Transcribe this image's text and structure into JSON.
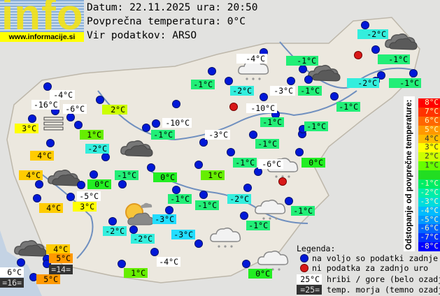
{
  "logo": {
    "word": "info",
    "url": "www.informacije.si"
  },
  "header": {
    "date_line": "Datum: 22.11.2025 ura: 20:50",
    "avg_line": "Povprečna temperatura: 0°C",
    "source_line": "Vir podatkov: ARSO"
  },
  "labels": [
    {
      "text": "-2°C",
      "color": "#33eedd"
    },
    {
      "text": "-4°C",
      "color": "#ffffff"
    },
    {
      "text": "-1°C",
      "color": "#22ee77"
    },
    {
      "text": "-1°C",
      "color": "#22ee77"
    },
    {
      "text": "-2°C",
      "color": "#33eedd"
    },
    {
      "text": "-1°C",
      "color": "#22ee77"
    },
    {
      "text": "-1°C",
      "color": "#22ee77"
    },
    {
      "text": "-2°C",
      "color": "#33eedd"
    },
    {
      "text": "-3°C",
      "color": "#ffffff"
    },
    {
      "text": "-1°C",
      "color": "#22ee77"
    },
    {
      "text": "-1°C",
      "color": "#22ee77"
    },
    {
      "text": "-10°C",
      "color": "#ffffff"
    },
    {
      "text": "-1°C",
      "color": "#22ee77"
    },
    {
      "text": "-1°C",
      "color": "#22ee77"
    },
    {
      "text": "-3°C",
      "color": "#ffffff"
    },
    {
      "text": "-1°C",
      "color": "#22ee77"
    },
    {
      "text": "-1°C",
      "color": "#22ee77"
    },
    {
      "text": "-6°C",
      "color": "#ffffff"
    },
    {
      "text": "0°C",
      "color": "#22ee22"
    },
    {
      "text": "-4°C",
      "color": "#ffffff"
    },
    {
      "text": "-16°C",
      "color": "#ffffff"
    },
    {
      "text": "-6°C",
      "color": "#ffffff"
    },
    {
      "text": "2°C",
      "color": "#ccff00"
    },
    {
      "text": "3°C",
      "color": "#ffff00"
    },
    {
      "text": "1°C",
      "color": "#66ee00"
    },
    {
      "text": "-10°C",
      "color": "#ffffff"
    },
    {
      "text": "-1°C",
      "color": "#22ee77"
    },
    {
      "text": "-2°C",
      "color": "#33eedd"
    },
    {
      "text": "4°C",
      "color": "#ffcc00"
    },
    {
      "text": "4°C",
      "color": "#ffcc00"
    },
    {
      "text": "-1°C",
      "color": "#22ee77"
    },
    {
      "text": "0°C",
      "color": "#22ee22"
    },
    {
      "text": "1°C",
      "color": "#66ee00"
    },
    {
      "text": "0°C",
      "color": "#22ee22"
    },
    {
      "text": "-5°C",
      "color": "#ffffff"
    },
    {
      "text": "4°C",
      "color": "#ffcc00"
    },
    {
      "text": "3°C",
      "color": "#ffff00"
    },
    {
      "text": "-1°C",
      "color": "#22ee77"
    },
    {
      "text": "-1°C",
      "color": "#22ee77"
    },
    {
      "text": "-2°C",
      "color": "#33eedd"
    },
    {
      "text": "-1°C",
      "color": "#22ee77"
    },
    {
      "text": "-3°C",
      "color": "#22ddff"
    },
    {
      "text": "-1°C",
      "color": "#22ee77"
    },
    {
      "text": "-2°C",
      "color": "#33eedd"
    },
    {
      "text": "-2°C",
      "color": "#33eedd"
    },
    {
      "text": "-3°C",
      "color": "#22ddff"
    },
    {
      "text": "4°C",
      "color": "#ffcc00"
    },
    {
      "text": "5°C",
      "color": "#ff9900"
    },
    {
      "text": "=14=",
      "color": "#333333"
    },
    {
      "text": "-4°C",
      "color": "#ffffff"
    },
    {
      "text": "6°C",
      "color": "#ffffff"
    },
    {
      "text": "=16=",
      "color": "#333333"
    },
    {
      "text": "5°C",
      "color": "#ff9900"
    },
    {
      "text": "1°C",
      "color": "#66ee00"
    },
    {
      "text": "0°C",
      "color": "#22ee22"
    }
  ],
  "stations_status": [
    "ok",
    "ok",
    "missing",
    "ok",
    "ok",
    "ok",
    "ok",
    "ok",
    "ok",
    "ok",
    "ok",
    "ok",
    "missing",
    "ok",
    "ok",
    "ok",
    "ok",
    "ok",
    "ok",
    "ok",
    "ok",
    "ok",
    "ok",
    "ok",
    "ok",
    "ok",
    "ok",
    "ok",
    "ok",
    "ok",
    "ok",
    "ok",
    "ok",
    "ok",
    "ok",
    "ok",
    "ok",
    "ok",
    "ok",
    "ok",
    "ok",
    "ok",
    "ok",
    "ok",
    "ok",
    "ok",
    "missing",
    "ok",
    "ok",
    "ok",
    "ok",
    "ok",
    "ok",
    "ok",
    "ok",
    "ok",
    "ok",
    "ok",
    "ok"
  ],
  "weather_icons": [
    "overcast",
    "overcast",
    "overcast",
    "overcast",
    "overcast",
    "light-snow",
    "light-snow",
    "light-snow",
    "light-snow",
    "light-snow",
    "partly-cloudy",
    "fog"
  ],
  "scale": {
    "title": "Odstopanje od povprečne temperature:",
    "cells": [
      {
        "text": "8°C",
        "color": "#ff0000"
      },
      {
        "text": "7°C",
        "color": "#ff3300"
      },
      {
        "text": "6°C",
        "color": "#ff6600"
      },
      {
        "text": "5°C",
        "color": "#ff9900"
      },
      {
        "text": "4°C",
        "color": "#ffbb00"
      },
      {
        "text": "3°C",
        "color": "#ffff00"
      },
      {
        "text": "2°C",
        "color": "#ccff00"
      },
      {
        "text": "1°C",
        "color": "#66ff00"
      },
      {
        "text": "",
        "color": "#22dd22"
      },
      {
        "text": "-1°C",
        "color": "#00ee66"
      },
      {
        "text": "-2°C",
        "color": "#00eeaa"
      },
      {
        "text": "-3°C",
        "color": "#00dddd"
      },
      {
        "text": "-4°C",
        "color": "#00bbff"
      },
      {
        "text": "-5°C",
        "color": "#0099ff"
      },
      {
        "text": "-6°C",
        "color": "#0066ff"
      },
      {
        "text": "-7°C",
        "color": "#0033ff"
      },
      {
        "text": "-8°C",
        "color": "#0000ff"
      }
    ]
  },
  "legend": {
    "title": "Legenda:",
    "available": "na voljo so podatki zadnje ure",
    "missing": "ni podatka za zadnjo uro",
    "mountain_chip": "25°C",
    "mountain_text": "hribi / gore (belo ozadje)",
    "sea_chip": "=25=",
    "sea_text": "temp. morja (temno ozadje)"
  }
}
